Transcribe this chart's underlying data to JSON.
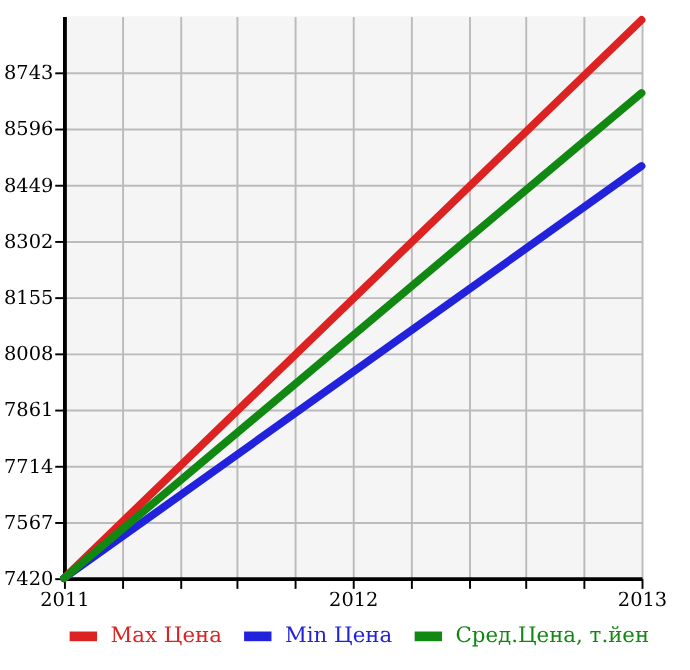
{
  "chart_data": {
    "type": "line",
    "x": [
      2011,
      2013
    ],
    "series": [
      {
        "name": "Max Цена",
        "color": "#dd2222",
        "values": [
          7420,
          8880
        ]
      },
      {
        "name": "Min Цена",
        "color": "#2222dd",
        "values": [
          7420,
          8498
        ]
      },
      {
        "name": "Сред.Цена, т.йен",
        "color": "#118811",
        "values": [
          7420,
          8689
        ]
      }
    ],
    "xlim": [
      2011,
      2013
    ],
    "xticks": [
      2011,
      {
        "value": 2011.2,
        "label": null
      },
      {
        "value": 2011.4,
        "label": null
      },
      {
        "value": 2011.6,
        "label": null
      },
      {
        "value": 2011.8,
        "label": null
      },
      2012,
      {
        "value": 2012.2,
        "label": null
      },
      {
        "value": 2012.4,
        "label": null
      },
      {
        "value": 2012.6,
        "label": null
      },
      {
        "value": 2012.8,
        "label": null
      },
      2013
    ],
    "ylim": [
      7420,
      8890
    ],
    "yticks": [
      7420,
      7567,
      7714,
      7861,
      8008,
      8155,
      8302,
      8449,
      8596,
      8743
    ],
    "grid": true,
    "legend": "bottom",
    "marker": "none",
    "line_style": "solid"
  }
}
